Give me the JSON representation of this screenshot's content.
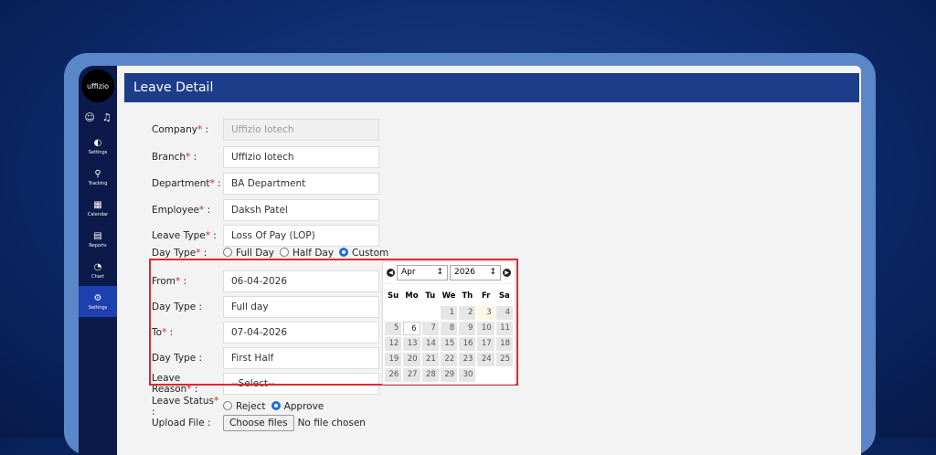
{
  "sidebar": {
    "logo": "uffizio",
    "items": [
      {
        "label": "Settings",
        "icon": "gauge-icon"
      },
      {
        "label": "Tracking",
        "icon": "tracking-icon"
      },
      {
        "label": "Calendar",
        "icon": "calendar-icon"
      },
      {
        "label": "Reports",
        "icon": "reports-icon"
      },
      {
        "label": "Chart",
        "icon": "chart-icon"
      },
      {
        "label": "Settings",
        "icon": "gear-icon",
        "active": true
      }
    ]
  },
  "header": {
    "title": "Leave Detail"
  },
  "form": {
    "company": {
      "label": "Company",
      "value": "Uffizio Iotech"
    },
    "branch": {
      "label": "Branch",
      "value": "Uffizio Iotech"
    },
    "department": {
      "label": "Department",
      "value": "BA Department"
    },
    "employee": {
      "label": "Employee",
      "value": "Daksh Patel"
    },
    "leave_type": {
      "label": "Leave Type",
      "value": "Loss Of Pay (LOP)"
    },
    "day_type": {
      "label": "Day Type",
      "options": [
        "Full Day",
        "Half Day",
        "Custom"
      ],
      "selected": "Custom"
    },
    "from": {
      "label": "From",
      "value": "06-04-2026"
    },
    "from_day_type": {
      "label": "Day Type :",
      "value": "Full day"
    },
    "to": {
      "label": "To",
      "value": "07-04-2026"
    },
    "to_day_type": {
      "label": "Day Type :",
      "value": "First Half"
    },
    "leave_reason": {
      "label": "Leave Reason",
      "value": "--Select--"
    },
    "leave_status": {
      "label": "Leave Status",
      "options": [
        "Reject",
        "Approve"
      ],
      "selected": "Approve"
    },
    "upload": {
      "label": "Upload File :",
      "button": "Choose files",
      "status": "No file chosen"
    }
  },
  "calendar": {
    "month": "Apr",
    "year": "2026",
    "weekdays": [
      "Su",
      "Mo",
      "Tu",
      "We",
      "Th",
      "Fr",
      "Sa"
    ],
    "today": 3,
    "selected": 6,
    "first_weekday": 3,
    "days": 30
  }
}
